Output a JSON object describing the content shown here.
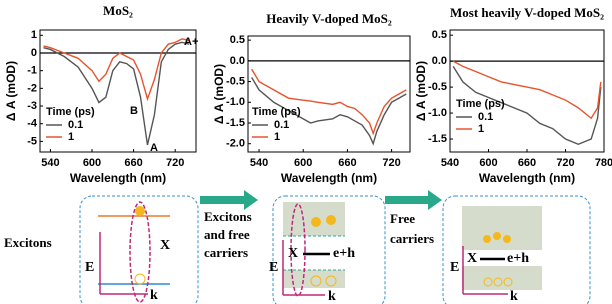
{
  "chart_data": [
    {
      "type": "line",
      "title": "MoS₂",
      "xlabel": "Wavelength (nm)",
      "ylabel": "Δ A (mOD)",
      "x": [
        530,
        540,
        560,
        580,
        600,
        610,
        620,
        630,
        640,
        650,
        660,
        670,
        680,
        690,
        700,
        710,
        720,
        730,
        740
      ],
      "series": [
        {
          "name": "0.1",
          "color": "#555555",
          "values": [
            0.3,
            0.2,
            -0.2,
            -0.8,
            -2.0,
            -2.8,
            -2.5,
            -1.0,
            -0.5,
            -0.6,
            -0.9,
            -2.5,
            -5.2,
            -3.5,
            -0.5,
            0.2,
            0.5,
            0.6,
            0.5
          ]
        },
        {
          "name": "1",
          "color": "#e8532c",
          "values": [
            0.4,
            0.3,
            0.0,
            -0.3,
            -1.0,
            -1.6,
            -1.2,
            -0.3,
            0.0,
            -0.2,
            -0.4,
            -1.2,
            -2.6,
            -1.5,
            0.0,
            0.5,
            0.6,
            0.8,
            0.7
          ]
        }
      ],
      "xlim": [
        525,
        750
      ],
      "xticks": [
        540,
        600,
        660,
        720
      ],
      "ylim": [
        -5.6,
        1.3
      ],
      "yticks": [
        1,
        0,
        -1,
        -2,
        -3,
        -4,
        -5
      ],
      "legend_title": "Time (ps)",
      "legend": "lower left",
      "annotations": [
        "B",
        "A",
        "A+"
      ]
    },
    {
      "type": "line",
      "title": "Heavily V-doped MoS₂",
      "xlabel": "Wavelength (nm)",
      "ylabel": "Δ A (mOD)",
      "x": [
        530,
        540,
        560,
        580,
        600,
        610,
        620,
        640,
        650,
        660,
        670,
        680,
        690,
        695,
        700,
        710,
        720,
        730,
        740
      ],
      "series": [
        {
          "name": "0.1",
          "color": "#555555",
          "values": [
            -0.4,
            -0.7,
            -1.0,
            -1.2,
            -1.4,
            -1.5,
            -1.45,
            -1.4,
            -1.3,
            -1.35,
            -1.45,
            -1.55,
            -1.8,
            -2.0,
            -1.7,
            -1.3,
            -1.0,
            -0.9,
            -0.8
          ]
        },
        {
          "name": "1",
          "color": "#e8532c",
          "values": [
            -0.2,
            -0.5,
            -0.7,
            -0.9,
            -0.95,
            -0.97,
            -1.0,
            -1.05,
            -1.0,
            -1.1,
            -1.15,
            -1.3,
            -1.5,
            -1.75,
            -1.5,
            -1.1,
            -0.9,
            -0.8,
            -0.7
          ]
        }
      ],
      "xlim": [
        525,
        745
      ],
      "xticks": [
        540,
        600,
        660,
        720
      ],
      "ylim": [
        -2.2,
        0.6
      ],
      "yticks": [
        0.5,
        {
          "value": 0,
          "label": "0.0"
        },
        -0.5,
        {
          "value": -1,
          "label": "-1.0"
        },
        -1.5,
        {
          "value": -2,
          "label": "-2.0"
        }
      ],
      "legend_title": "Time (ps)",
      "legend": "lower left"
    },
    {
      "type": "line",
      "title": "Most heavily V-doped MoS₂",
      "xlabel": "Wavelength (nm)",
      "ylabel": "Δ A (mOD)",
      "x": [
        545,
        560,
        580,
        600,
        620,
        640,
        660,
        680,
        700,
        720,
        740,
        760,
        770,
        775
      ],
      "series": [
        {
          "name": "0.1",
          "color": "#555555",
          "values": [
            -0.1,
            -0.4,
            -0.6,
            -0.7,
            -0.8,
            -0.9,
            -1.0,
            -1.2,
            -1.3,
            -1.5,
            -1.6,
            -1.5,
            -1.1,
            -0.5
          ]
        },
        {
          "name": "1",
          "color": "#e8532c",
          "values": [
            0.0,
            -0.1,
            -0.2,
            -0.3,
            -0.4,
            -0.45,
            -0.5,
            -0.55,
            -0.65,
            -0.75,
            -0.9,
            -1.1,
            -0.9,
            -0.4
          ]
        }
      ],
      "xlim": [
        540,
        780
      ],
      "xticks": [
        540,
        600,
        660,
        720,
        780
      ],
      "ylim": [
        -1.75,
        0.6
      ],
      "yticks": [
        0.5,
        {
          "value": 0,
          "label": "0.0"
        },
        -0.5,
        {
          "value": -1,
          "label": "-1.0"
        },
        -1.5
      ],
      "legend_title": "Time (ps)",
      "legend": "lower left"
    }
  ],
  "schematic": {
    "captions": [
      [
        "Excitons"
      ],
      [
        "Excitons",
        "and free",
        "carriers"
      ],
      [
        "Free",
        "carriers"
      ]
    ],
    "panels": [
      {
        "exciton": "X",
        "energy": "E",
        "momentum": "k"
      },
      {
        "exciton": "X",
        "pair": "e+h",
        "energy": "E",
        "momentum": "k"
      },
      {
        "exciton": "X",
        "pair": "e+h",
        "energy": "E",
        "momentum": "k"
      }
    ]
  }
}
